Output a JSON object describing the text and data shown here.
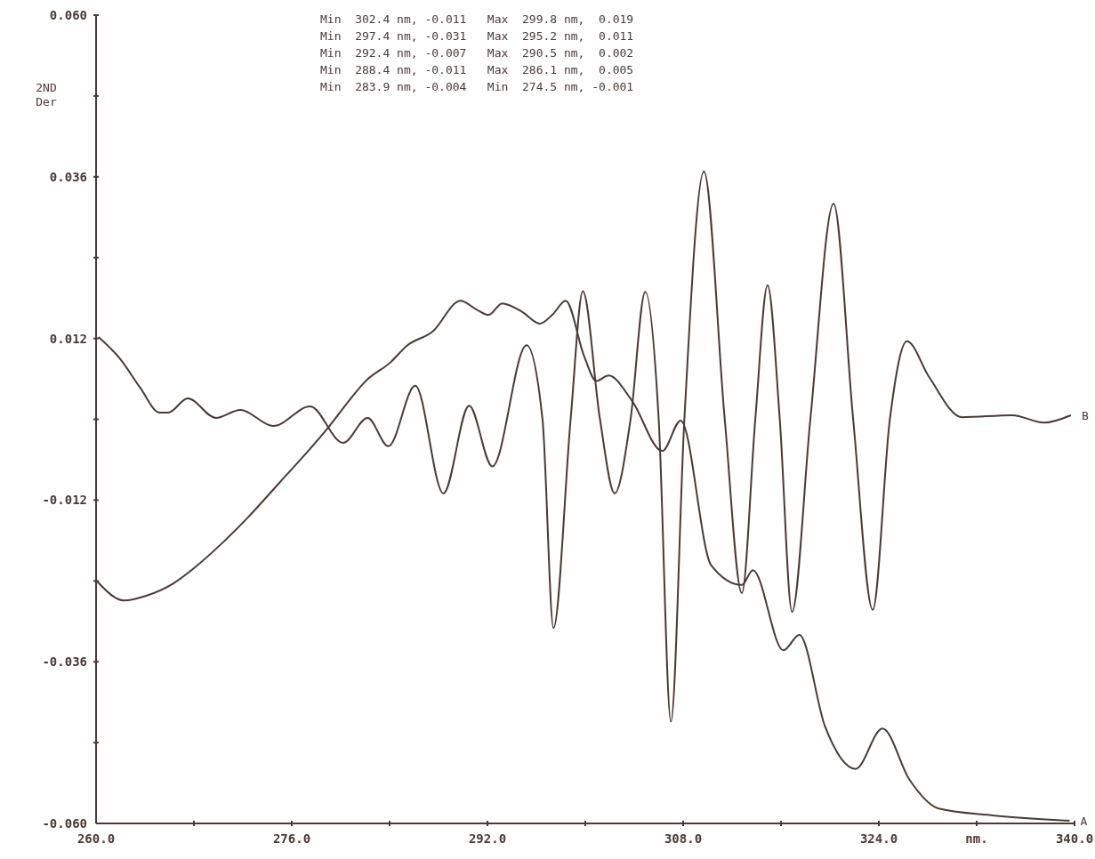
{
  "chart_data": {
    "type": "line",
    "ylabel": "2ND Der",
    "xlabel": "nm.",
    "annotations": [
      "Min  302.4 nm, -0.011   Max  299.8 nm,  0.019",
      "Min  297.4 nm, -0.031   Max  295.2 nm,  0.011",
      "Min  292.4 nm, -0.007   Max  290.5 nm,  0.002",
      "Min  288.4 nm, -0.011   Max  286.1 nm,  0.005",
      "Min  283.9 nm, -0.004   Min  274.5 nm, -0.001"
    ],
    "xlim": [
      260,
      340
    ],
    "xticks": [
      {
        "value": 260,
        "label": "260.0"
      },
      {
        "value": 268,
        "label": null
      },
      {
        "value": 276,
        "label": "276.0"
      },
      {
        "value": 284,
        "label": null
      },
      {
        "value": 292,
        "label": "292.0"
      },
      {
        "value": 300,
        "label": null
      },
      {
        "value": 308,
        "label": "308.0"
      },
      {
        "value": 316,
        "label": null
      },
      {
        "value": 324,
        "label": "324.0"
      },
      {
        "value": 332,
        "label": null
      },
      {
        "value": 340,
        "label": "340.0"
      }
    ],
    "ylim": [
      -0.06,
      0.06
    ],
    "yticks": [
      {
        "value": -0.06,
        "label": "-0.060"
      },
      {
        "value": -0.048,
        "label": null
      },
      {
        "value": -0.036,
        "label": "-0.036"
      },
      {
        "value": -0.024,
        "label": null
      },
      {
        "value": -0.012,
        "label": "-0.012"
      },
      {
        "value": 0,
        "label": null
      },
      {
        "value": 0.012,
        "label": "0.012"
      },
      {
        "value": 0.024,
        "label": null
      },
      {
        "value": 0.036,
        "label": "0.036"
      },
      {
        "value": 0.048,
        "label": null
      },
      {
        "value": 0.06,
        "label": "0.060"
      }
    ],
    "grid": false,
    "marker": "none",
    "line_style": "solid",
    "series": [
      {
        "name": "A",
        "color": "#4a3a35",
        "x": [
          260.1,
          262.3,
          264.1,
          266.2,
          268.0,
          270.3,
          272.4,
          275.0,
          277.1,
          278.9,
          280.7,
          282.0,
          284.1,
          285.4,
          287.5,
          289.8,
          291.1,
          292.1,
          293.2,
          294.8,
          296.3,
          297.3,
          298.4,
          299.9,
          300.9,
          301.9,
          303.8,
          306.3,
          307.8,
          310.3,
          312.8,
          313.7,
          316.2,
          317.5,
          319.6,
          322.1,
          324.3,
          326.5,
          328.9,
          333.3,
          339.6
        ],
        "values": [
          -0.0241,
          -0.0269,
          -0.0262,
          -0.0245,
          -0.0221,
          -0.0184,
          -0.0146,
          -0.0094,
          -0.0052,
          -0.0014,
          0.0028,
          0.0056,
          0.0085,
          0.0109,
          0.013,
          0.0176,
          0.0163,
          0.0155,
          0.0172,
          0.016,
          0.0142,
          0.0155,
          0.0176,
          0.0094,
          0.0057,
          0.0065,
          0.0028,
          -0.0047,
          -0.0002,
          -0.0217,
          -0.0246,
          -0.0224,
          -0.0343,
          -0.032,
          -0.0456,
          -0.0519,
          -0.0459,
          -0.0535,
          -0.0578,
          -0.0588,
          -0.0596
        ]
      },
      {
        "name": "B",
        "color": "#4a3a35",
        "x": [
          260.2,
          262.0,
          263.6,
          265.2,
          265.9,
          267.5,
          269.8,
          271.8,
          274.5,
          277.5,
          280.2,
          282.2,
          283.9,
          286.1,
          288.4,
          290.5,
          292.4,
          295.2,
          296.5,
          297.4,
          298.8,
          299.8,
          301.2,
          302.4,
          303.7,
          304.9,
          306.0,
          307.0,
          308.1,
          309.7,
          311.4,
          312.8,
          313.9,
          314.9,
          315.9,
          316.9,
          318.4,
          320.3,
          321.9,
          323.5,
          324.9,
          326.3,
          328.1,
          330.8,
          334.9,
          337.5,
          339.7
        ],
        "values": [
          0.0122,
          0.0089,
          0.0047,
          0.001,
          0.001,
          0.0031,
          0.0002,
          0.0014,
          -0.001,
          0.0019,
          -0.0035,
          0.0002,
          -0.004,
          0.005,
          -0.011,
          0.002,
          -0.007,
          0.011,
          0,
          -0.031,
          0,
          0.019,
          0,
          -0.011,
          0,
          0.0189,
          0,
          -0.0449,
          0,
          0.0368,
          0,
          -0.0258,
          0,
          0.0199,
          0,
          -0.0286,
          0,
          0.032,
          0,
          -0.0283,
          0,
          0.0116,
          0.0063,
          0.0003,
          0.0006,
          -0.0005,
          0.0006
        ]
      }
    ]
  }
}
